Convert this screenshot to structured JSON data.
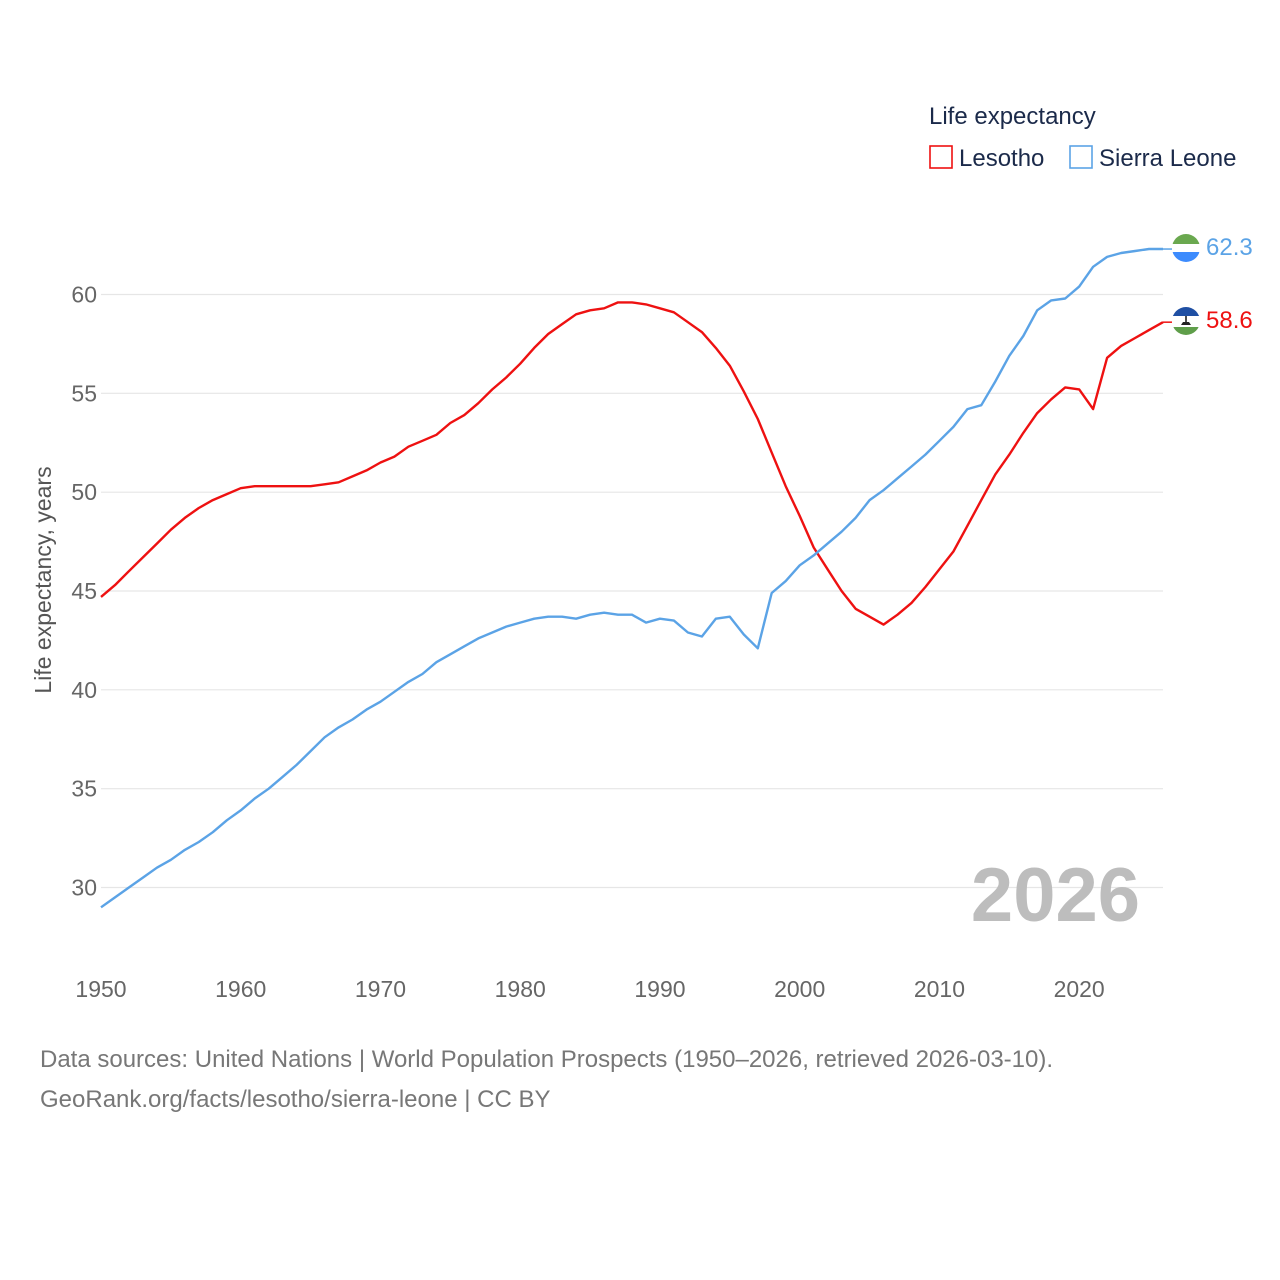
{
  "chart_data": {
    "type": "line",
    "title": "",
    "legend_title": "Life expectancy",
    "ylabel": "Life expectancy, years",
    "xlabel": "",
    "xlim": [
      1950,
      2026
    ],
    "ylim": [
      27.5,
      63.5
    ],
    "xticks": [
      1950,
      1960,
      1970,
      1980,
      1990,
      2000,
      2010,
      2020
    ],
    "yticks": [
      30,
      35,
      40,
      45,
      50,
      55,
      60
    ],
    "year_overlay": "2026",
    "legend_position": "top-right",
    "x": [
      1950,
      1951,
      1952,
      1953,
      1954,
      1955,
      1956,
      1957,
      1958,
      1959,
      1960,
      1961,
      1962,
      1963,
      1964,
      1965,
      1966,
      1967,
      1968,
      1969,
      1970,
      1971,
      1972,
      1973,
      1974,
      1975,
      1976,
      1977,
      1978,
      1979,
      1980,
      1981,
      1982,
      1983,
      1984,
      1985,
      1986,
      1987,
      1988,
      1989,
      1990,
      1991,
      1992,
      1993,
      1994,
      1995,
      1996,
      1997,
      1998,
      1999,
      2000,
      2001,
      2002,
      2003,
      2004,
      2005,
      2006,
      2007,
      2008,
      2009,
      2010,
      2011,
      2012,
      2013,
      2014,
      2015,
      2016,
      2017,
      2018,
      2019,
      2020,
      2021,
      2022,
      2023,
      2024,
      2025,
      2026
    ],
    "series": [
      {
        "name": "Lesotho",
        "color": "#ee1111",
        "end_label": "58.6",
        "values": [
          44.7,
          45.3,
          46.0,
          46.7,
          47.4,
          48.1,
          48.7,
          49.2,
          49.6,
          49.9,
          50.2,
          50.3,
          50.3,
          50.3,
          50.3,
          50.3,
          50.4,
          50.5,
          50.8,
          51.1,
          51.5,
          51.8,
          52.3,
          52.6,
          52.9,
          53.5,
          53.9,
          54.5,
          55.2,
          55.8,
          56.5,
          57.3,
          58.0,
          58.5,
          59.0,
          59.2,
          59.3,
          59.6,
          59.6,
          59.5,
          59.3,
          59.1,
          58.6,
          58.1,
          57.3,
          56.4,
          55.1,
          53.7,
          52.0,
          50.3,
          48.8,
          47.2,
          46.1,
          45.0,
          44.1,
          43.7,
          43.3,
          43.8,
          44.4,
          45.2,
          46.1,
          47.0,
          48.3,
          49.6,
          50.9,
          51.9,
          53.0,
          54.0,
          54.7,
          55.3,
          55.2,
          54.2,
          56.8,
          57.4,
          57.8,
          58.2,
          58.6
        ]
      },
      {
        "name": "Sierra Leone",
        "color": "#5ba3e6",
        "end_label": "62.3",
        "values": [
          29.0,
          29.5,
          30.0,
          30.5,
          31.0,
          31.4,
          31.9,
          32.3,
          32.8,
          33.4,
          33.9,
          34.5,
          35.0,
          35.6,
          36.2,
          36.9,
          37.6,
          38.1,
          38.5,
          39.0,
          39.4,
          39.9,
          40.4,
          40.8,
          41.4,
          41.8,
          42.2,
          42.6,
          42.9,
          43.2,
          43.4,
          43.6,
          43.7,
          43.7,
          43.6,
          43.8,
          43.9,
          43.8,
          43.8,
          43.4,
          43.6,
          43.5,
          42.9,
          42.7,
          43.6,
          43.7,
          42.8,
          42.1,
          44.9,
          45.5,
          46.3,
          46.8,
          47.4,
          48.0,
          48.7,
          49.6,
          50.1,
          50.7,
          51.3,
          51.9,
          52.6,
          53.3,
          54.2,
          54.4,
          55.6,
          56.9,
          57.9,
          59.2,
          59.7,
          59.8,
          60.4,
          61.4,
          61.9,
          62.1,
          62.2,
          62.3,
          62.3
        ]
      }
    ]
  },
  "source": {
    "line1": "Data sources: United Nations | World Population Prospects (1950–2026, retrieved 2026-03-10).",
    "line2": "GeoRank.org/facts/lesotho/sierra-leone | CC BY"
  }
}
